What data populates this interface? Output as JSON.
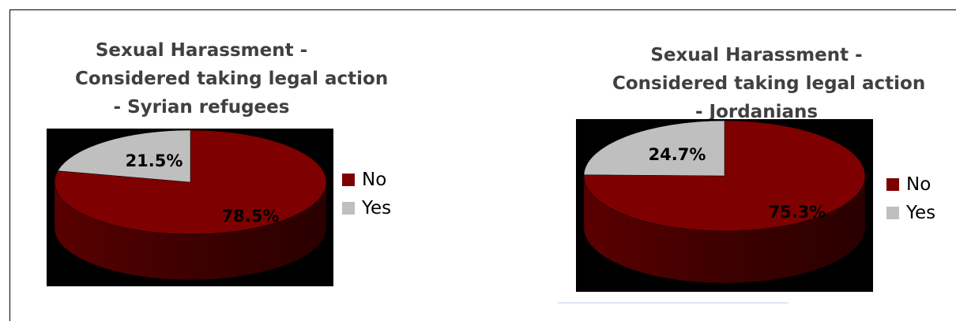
{
  "colors": {
    "no": "#7f0000",
    "no_dark": "#3d0000",
    "yes": "#bfbfbf",
    "yes_dark": "#7a7a7a",
    "plot_bg": "#000000"
  },
  "chart_data": [
    {
      "type": "pie",
      "title": [
        "Sexual Harassment -",
        "Considered taking legal action",
        "- Syrian refugees"
      ],
      "categories": [
        "No",
        "Yes"
      ],
      "values": [
        78.5,
        21.5
      ],
      "labels": [
        "78.5%",
        "21.5%"
      ],
      "legend": "right",
      "style": "3d"
    },
    {
      "type": "pie",
      "title": [
        "Sexual Harassment -",
        "Considered taking legal action",
        "- Jordanians"
      ],
      "categories": [
        "No",
        "Yes"
      ],
      "values": [
        75.3,
        24.7
      ],
      "labels": [
        "75.3%",
        "24.7%"
      ],
      "legend": "right",
      "style": "3d"
    }
  ]
}
